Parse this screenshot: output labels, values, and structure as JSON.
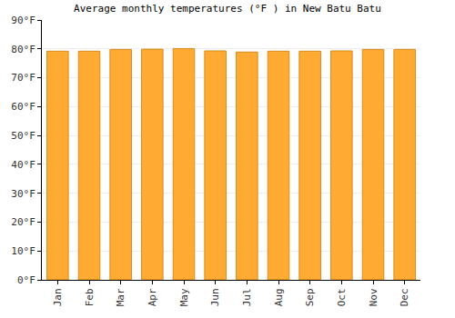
{
  "chart_data": {
    "type": "bar",
    "title": "Average monthly temperatures (°F ) in New Batu Batu",
    "categories": [
      "Jan",
      "Feb",
      "Mar",
      "Apr",
      "May",
      "Jun",
      "Jul",
      "Aug",
      "Sep",
      "Oct",
      "Nov",
      "Dec"
    ],
    "values": [
      79.2,
      79.2,
      79.8,
      79.9,
      80.1,
      79.3,
      78.9,
      79.2,
      79.2,
      79.3,
      79.8,
      79.8
    ],
    "color": "#ffab33",
    "ylim": [
      0,
      90
    ],
    "yticks": [
      {
        "value": 0,
        "label": "0°F"
      },
      {
        "value": 10,
        "label": "10°F"
      },
      {
        "value": 20,
        "label": "20°F"
      },
      {
        "value": 30,
        "label": "30°F"
      },
      {
        "value": 40,
        "label": "40°F"
      },
      {
        "value": 50,
        "label": "50°F"
      },
      {
        "value": 60,
        "label": "60°F"
      },
      {
        "value": 70,
        "label": "70°F"
      },
      {
        "value": 80,
        "label": "80°F"
      },
      {
        "value": 90,
        "label": "90°F"
      }
    ],
    "grid": true
  }
}
